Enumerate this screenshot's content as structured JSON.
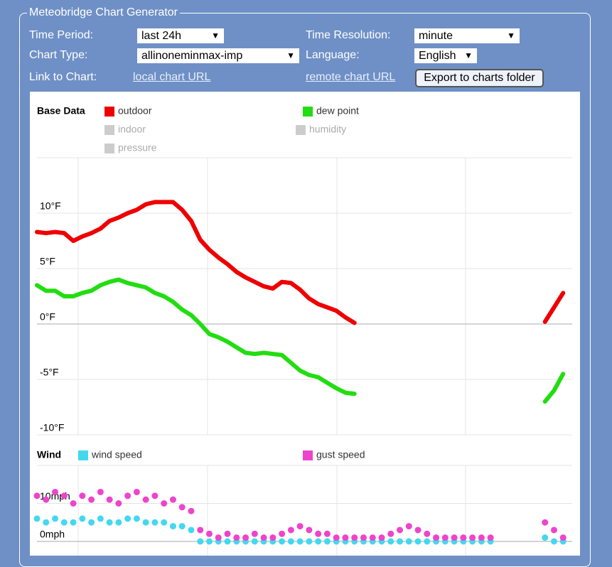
{
  "form": {
    "legend": "Meteobridge Chart Generator",
    "time_period": {
      "label": "Time Period:",
      "value": "last 24h"
    },
    "time_resolution": {
      "label": "Time Resolution:",
      "value": "minute"
    },
    "chart_type": {
      "label": "Chart Type:",
      "value": "allinoneminmax-imp"
    },
    "language": {
      "label": "Language:",
      "value": "English"
    },
    "link": {
      "label": "Link to Chart:",
      "local": "local chart URL",
      "remote": "remote chart URL"
    },
    "export_button": "Export to charts folder"
  },
  "chart_data": [
    {
      "type": "line",
      "title": "Base Data",
      "series": [
        {
          "name": "outdoor",
          "color": "#ee0000",
          "values": [
            8.3,
            8.2,
            8.3,
            8.2,
            7.5,
            7.9,
            8.2,
            8.6,
            9.3,
            9.6,
            10,
            10.3,
            10.8,
            11,
            11,
            11,
            10.3,
            9.3,
            7.6,
            6.7,
            6,
            5.4,
            4.7,
            4.2,
            3.8,
            3.4,
            3.2,
            3.8,
            3.7,
            3.1,
            2.3,
            1.8,
            1.5,
            1.2,
            0.6,
            0.1,
            null,
            null,
            null,
            null,
            null,
            null,
            null,
            null,
            null,
            null,
            null,
            null,
            null,
            null,
            null,
            null,
            null,
            null,
            null,
            null,
            0.2,
            1.5,
            2.8,
            null
          ]
        },
        {
          "name": "dew point",
          "color": "#22dd11",
          "values": [
            3.5,
            3,
            3,
            2.5,
            2.5,
            2.8,
            3,
            3.5,
            3.8,
            4,
            3.7,
            3.5,
            3.3,
            2.8,
            2.5,
            2,
            1.3,
            0.8,
            0,
            -0.9,
            -1.2,
            -1.6,
            -2.1,
            -2.6,
            -2.7,
            -2.6,
            -2.7,
            -2.8,
            -3.5,
            -4.2,
            -4.6,
            -4.8,
            -5.3,
            -5.8,
            -6.2,
            -6.3,
            null,
            null,
            null,
            null,
            null,
            null,
            null,
            null,
            null,
            null,
            null,
            null,
            null,
            null,
            null,
            null,
            null,
            null,
            null,
            null,
            -7,
            -6,
            -4.5,
            null
          ]
        }
      ],
      "hidden_series": [
        "indoor",
        "humidity",
        "pressure"
      ],
      "ylim": [
        -10,
        15
      ],
      "yticks": [
        {
          "value": -10,
          "label": "-10°F"
        },
        {
          "value": -5,
          "label": "-5°F"
        },
        {
          "value": 0,
          "label": "0°F"
        },
        {
          "value": 5,
          "label": "5°F"
        },
        {
          "value": 10,
          "label": "10°F"
        }
      ],
      "grid": true
    },
    {
      "type": "scatter",
      "title": "Wind",
      "series": [
        {
          "name": "wind speed",
          "color": "#44d8ee",
          "values": [
            6,
            5,
            6,
            5,
            5,
            6,
            5,
            6,
            5,
            5,
            6,
            6,
            5,
            5,
            5,
            4,
            4,
            3,
            0,
            0,
            0,
            0,
            0,
            0,
            0,
            0,
            0,
            0,
            0,
            0,
            0,
            0,
            0,
            0,
            0,
            0,
            0,
            0,
            0,
            0,
            0,
            0,
            0,
            0,
            0,
            0,
            0,
            0,
            0,
            0,
            0,
            null,
            null,
            null,
            null,
            null,
            1,
            0,
            0,
            null
          ]
        },
        {
          "name": "gust speed",
          "color": "#ee44cc",
          "values": [
            12,
            11,
            13,
            12,
            10,
            12,
            11,
            13,
            11,
            10,
            12,
            13,
            11,
            12,
            10,
            11,
            9,
            8,
            3,
            2,
            1,
            2,
            1,
            1,
            2,
            1,
            1,
            2,
            3,
            4,
            3,
            2,
            2,
            1,
            1,
            1,
            1,
            1,
            1,
            2,
            3,
            4,
            3,
            2,
            1,
            1,
            1,
            1,
            1,
            1,
            1,
            null,
            null,
            null,
            null,
            null,
            5,
            3,
            1,
            null
          ]
        }
      ],
      "ylim": [
        0,
        20
      ],
      "yticks": [
        {
          "value": 0,
          "label": "0mph"
        },
        {
          "value": 10,
          "label": "10mph"
        }
      ],
      "grid": true
    }
  ]
}
